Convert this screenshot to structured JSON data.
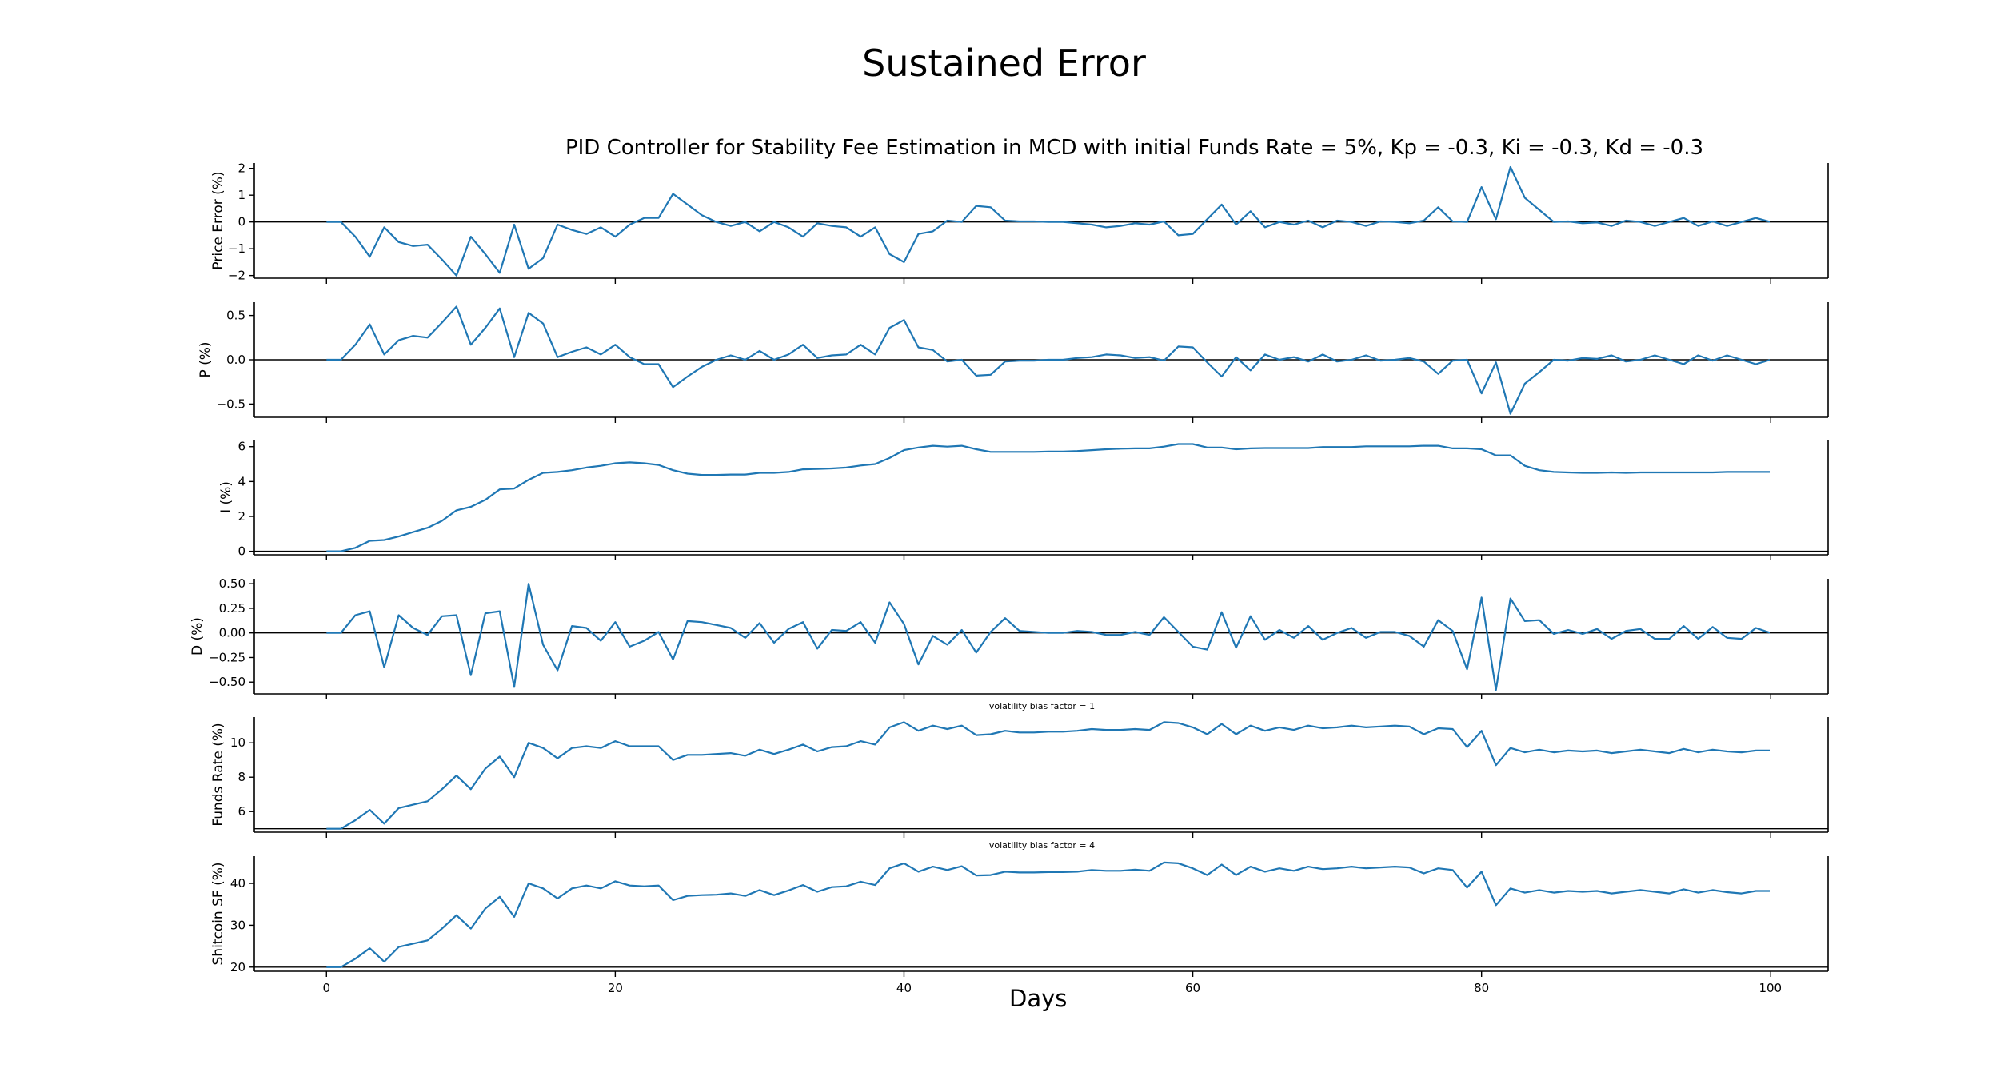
{
  "figure": {
    "suptitle": "Sustained Error",
    "subtitle": "PID Controller for Stability Fee Estimation in MCD with initial Funds Rate = 5%, Kp = -0.3, Ki = -0.3, Kd = -0.3",
    "xlabel": "Days"
  },
  "colors": {
    "line": "#1f77b4",
    "axis": "#000000"
  },
  "chart_data": [
    {
      "type": "line",
      "ylabel": "Price Error (%)",
      "xlim": [
        -5,
        104
      ],
      "ylim": [
        -2.1,
        2.2
      ],
      "yticks": [
        -2,
        -1,
        0,
        1,
        2
      ],
      "ytick_labels": [
        "−2",
        "−1",
        "0",
        "1",
        "2"
      ],
      "hline": 0,
      "annotation": "",
      "values": [
        0,
        0,
        -0.55,
        -1.3,
        -0.2,
        -0.75,
        -0.9,
        -0.85,
        -1.4,
        -2,
        -0.55,
        -1.2,
        -1.9,
        -0.1,
        -1.75,
        -1.35,
        -0.1,
        -0.3,
        -0.45,
        -0.2,
        -0.55,
        -0.1,
        0.15,
        0.15,
        1.05,
        0.65,
        0.25,
        0,
        -0.15,
        0,
        -0.35,
        0,
        -0.2,
        -0.55,
        -0.05,
        -0.15,
        -0.2,
        -0.55,
        -0.2,
        -1.2,
        -1.5,
        -0.45,
        -0.35,
        0.05,
        0,
        0.6,
        0.55,
        0.05,
        0.02,
        0.02,
        0,
        0,
        -0.05,
        -0.1,
        -0.2,
        -0.15,
        -0.05,
        -0.1,
        0.02,
        -0.5,
        -0.45,
        0.1,
        0.65,
        -0.1,
        0.4,
        -0.2,
        0,
        -0.1,
        0.05,
        -0.2,
        0.05,
        0,
        -0.15,
        0.02,
        0,
        -0.05,
        0.05,
        0.55,
        0.02,
        0,
        1.3,
        0.1,
        2.05,
        0.9,
        0.45,
        0,
        0.02,
        -0.05,
        -0.02,
        -0.15,
        0.05,
        0,
        -0.15,
        0,
        0.15,
        -0.15,
        0.02,
        -0.15,
        0,
        0.15,
        0
      ]
    },
    {
      "type": "line",
      "ylabel": "P (%)",
      "xlim": [
        -5,
        104
      ],
      "ylim": [
        -0.65,
        0.65
      ],
      "yticks": [
        -0.5,
        0,
        0.5
      ],
      "ytick_labels": [
        "−0.5",
        "0.0",
        "0.5"
      ],
      "hline": 0,
      "annotation": "",
      "values": [
        0,
        0,
        0.17,
        0.4,
        0.06,
        0.22,
        0.27,
        0.25,
        0.42,
        0.6,
        0.17,
        0.36,
        0.58,
        0.03,
        0.53,
        0.41,
        0.03,
        0.09,
        0.14,
        0.06,
        0.17,
        0.03,
        -0.05,
        -0.05,
        -0.31,
        -0.19,
        -0.08,
        0,
        0.05,
        0,
        0.1,
        0,
        0.06,
        0.17,
        0.02,
        0.05,
        0.06,
        0.17,
        0.06,
        0.36,
        0.45,
        0.14,
        0.11,
        -0.02,
        0,
        -0.18,
        -0.17,
        -0.02,
        -0.01,
        -0.01,
        0,
        0,
        0.02,
        0.03,
        0.06,
        0.05,
        0.02,
        0.03,
        -0.01,
        0.15,
        0.14,
        -0.03,
        -0.19,
        0.03,
        -0.12,
        0.06,
        0,
        0.03,
        -0.02,
        0.06,
        -0.02,
        0,
        0.05,
        -0.01,
        0,
        0.02,
        -0.02,
        -0.16,
        -0.01,
        0,
        -0.38,
        -0.03,
        -0.61,
        -0.27,
        -0.14,
        0,
        -0.01,
        0.02,
        0.01,
        0.05,
        -0.02,
        0,
        0.05,
        0,
        -0.05,
        0.05,
        -0.01,
        0.05,
        0,
        -0.05,
        0
      ]
    },
    {
      "type": "line",
      "ylabel": "I (%)",
      "xlim": [
        -5,
        104
      ],
      "ylim": [
        -0.2,
        6.4
      ],
      "yticks": [
        0,
        2,
        4,
        6
      ],
      "ytick_labels": [
        "0",
        "2",
        "4",
        "6"
      ],
      "hline": 0,
      "annotation": "",
      "values": [
        0,
        0,
        0.2,
        0.6,
        0.65,
        0.85,
        1.1,
        1.35,
        1.75,
        2.35,
        2.55,
        2.95,
        3.55,
        3.6,
        4.1,
        4.5,
        4.55,
        4.65,
        4.8,
        4.9,
        5.05,
        5.1,
        5.05,
        4.95,
        4.65,
        4.45,
        4.38,
        4.38,
        4.4,
        4.4,
        4.5,
        4.5,
        4.55,
        4.7,
        4.72,
        4.75,
        4.8,
        4.92,
        5,
        5.35,
        5.8,
        5.95,
        6.05,
        6,
        6.05,
        5.85,
        5.7,
        5.7,
        5.7,
        5.7,
        5.72,
        5.72,
        5.75,
        5.8,
        5.85,
        5.88,
        5.9,
        5.9,
        6,
        6.15,
        6.15,
        5.95,
        5.95,
        5.85,
        5.9,
        5.92,
        5.92,
        5.92,
        5.92,
        5.98,
        5.98,
        5.98,
        6.02,
        6.02,
        6.02,
        6.02,
        6.05,
        6.05,
        5.9,
        5.9,
        5.85,
        5.5,
        5.5,
        4.9,
        4.65,
        4.55,
        4.52,
        4.5,
        4.5,
        4.52,
        4.5,
        4.52,
        4.52,
        4.52,
        4.52,
        4.52,
        4.52,
        4.55,
        4.55,
        4.55,
        4.55
      ]
    },
    {
      "type": "line",
      "ylabel": "D (%)",
      "xlim": [
        -5,
        104
      ],
      "ylim": [
        -0.62,
        0.55
      ],
      "yticks": [
        -0.5,
        -0.25,
        0,
        0.25,
        0.5
      ],
      "ytick_labels": [
        "−0.50",
        "−0.25",
        "0.00",
        "0.25",
        "0.50"
      ],
      "hline": 0,
      "annotation": "",
      "values": [
        0,
        0,
        0.18,
        0.22,
        -0.35,
        0.18,
        0.05,
        -0.02,
        0.17,
        0.18,
        -0.43,
        0.2,
        0.22,
        -0.55,
        0.5,
        -0.12,
        -0.38,
        0.07,
        0.05,
        -0.08,
        0.11,
        -0.14,
        -0.08,
        0.01,
        -0.27,
        0.12,
        0.11,
        0.08,
        0.05,
        -0.05,
        0.1,
        -0.1,
        0.04,
        0.11,
        -0.16,
        0.03,
        0.02,
        0.11,
        -0.1,
        0.31,
        0.09,
        -0.32,
        -0.03,
        -0.12,
        0.03,
        -0.2,
        0.01,
        0.15,
        0.02,
        0.01,
        0,
        0,
        0.02,
        0.01,
        -0.02,
        -0.02,
        0.01,
        -0.02,
        0.16,
        0.01,
        -0.14,
        -0.17,
        0.21,
        -0.15,
        0.17,
        -0.07,
        0.03,
        -0.05,
        0.07,
        -0.07,
        0,
        0.05,
        -0.05,
        0.01,
        0.01,
        -0.03,
        -0.14,
        0.13,
        0.02,
        -0.37,
        0.36,
        -0.58,
        0.35,
        0.12,
        0.13,
        -0.01,
        0.03,
        -0.01,
        0.04,
        -0.06,
        0.02,
        0.04,
        -0.06,
        -0.06,
        0.07,
        -0.06,
        0.06,
        -0.05,
        -0.06,
        0.05,
        0
      ]
    },
    {
      "type": "line",
      "ylabel": "Funds Rate (%)",
      "xlim": [
        -5,
        104
      ],
      "ylim": [
        4.8,
        11.5
      ],
      "yticks": [
        6,
        8,
        10
      ],
      "ytick_labels": [
        "6",
        "8",
        "10"
      ],
      "hline": 5,
      "annotation": "volatility bias factor = 1",
      "values": [
        5,
        5,
        5.5,
        6.1,
        5.3,
        6.2,
        6.4,
        6.6,
        7.3,
        8.1,
        7.3,
        8.5,
        9.2,
        8,
        10,
        9.7,
        9.1,
        9.7,
        9.8,
        9.7,
        10.1,
        9.8,
        9.8,
        9.8,
        9,
        9.3,
        9.3,
        9.35,
        9.4,
        9.25,
        9.6,
        9.35,
        9.6,
        9.9,
        9.5,
        9.75,
        9.8,
        10.1,
        9.9,
        10.9,
        11.2,
        10.7,
        11,
        10.8,
        11,
        10.45,
        10.5,
        10.7,
        10.6,
        10.6,
        10.65,
        10.65,
        10.7,
        10.8,
        10.75,
        10.75,
        10.8,
        10.75,
        11.2,
        11.15,
        10.9,
        10.5,
        11.1,
        10.5,
        11,
        10.7,
        10.9,
        10.75,
        11,
        10.85,
        10.9,
        11,
        10.9,
        10.95,
        11,
        10.95,
        10.5,
        10.85,
        10.8,
        9.75,
        10.7,
        8.7,
        9.7,
        9.45,
        9.6,
        9.45,
        9.55,
        9.5,
        9.55,
        9.4,
        9.5,
        9.6,
        9.5,
        9.4,
        9.65,
        9.45,
        9.6,
        9.5,
        9.45,
        9.55,
        9.55
      ]
    },
    {
      "type": "line",
      "ylabel": "Shitcoin SF (%)",
      "xlim": [
        -5,
        104
      ],
      "ylim": [
        19,
        46.5
      ],
      "yticks": [
        20,
        30,
        40
      ],
      "ytick_labels": [
        "20",
        "30",
        "40"
      ],
      "hline": 20,
      "annotation": "volatility bias factor = 4",
      "values": [
        20,
        20,
        22,
        24.5,
        21.3,
        24.8,
        25.6,
        26.4,
        29.2,
        32.4,
        29.2,
        34,
        36.8,
        32,
        40,
        38.8,
        36.4,
        38.8,
        39.5,
        38.8,
        40.5,
        39.5,
        39.3,
        39.5,
        36,
        37,
        37.2,
        37.3,
        37.6,
        37,
        38.4,
        37.2,
        38.3,
        39.6,
        38,
        39.1,
        39.3,
        40.4,
        39.6,
        43.6,
        44.8,
        42.8,
        44,
        43.2,
        44.1,
        41.9,
        42,
        42.8,
        42.6,
        42.6,
        42.7,
        42.7,
        42.8,
        43.2,
        43,
        43,
        43.3,
        43,
        45,
        44.8,
        43.6,
        42,
        44.5,
        42,
        44,
        42.8,
        43.6,
        43,
        44,
        43.4,
        43.6,
        44,
        43.6,
        43.8,
        44,
        43.8,
        42.4,
        43.6,
        43.2,
        39,
        42.8,
        34.8,
        38.8,
        37.8,
        38.4,
        37.8,
        38.2,
        38,
        38.2,
        37.6,
        38,
        38.4,
        38,
        37.6,
        38.6,
        37.8,
        38.4,
        37.9,
        37.6,
        38.2,
        38.2
      ]
    }
  ],
  "xaxis": {
    "ticks": [
      0,
      20,
      40,
      60,
      80,
      100
    ],
    "tick_labels": [
      "0",
      "20",
      "40",
      "60",
      "80",
      "100"
    ]
  }
}
